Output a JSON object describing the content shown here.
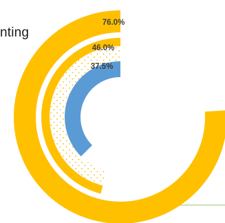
{
  "partial_text": "nting",
  "colors": {
    "outer_ring": "#FFC000",
    "middle_ring": "#FFC000",
    "inner_ring": "#5B9BD5",
    "dots": "#F2B705",
    "baseline": "#A9D18E",
    "label_text": "#404040",
    "label_text_blue": "#3A3A3A"
  },
  "chart_data": {
    "type": "radial-bar",
    "series": [
      {
        "value": 0.76,
        "label": "76.0%"
      },
      {
        "value": 0.46,
        "label": "46.0%"
      },
      {
        "value": 0.375,
        "label": "37.5%"
      }
    ]
  }
}
